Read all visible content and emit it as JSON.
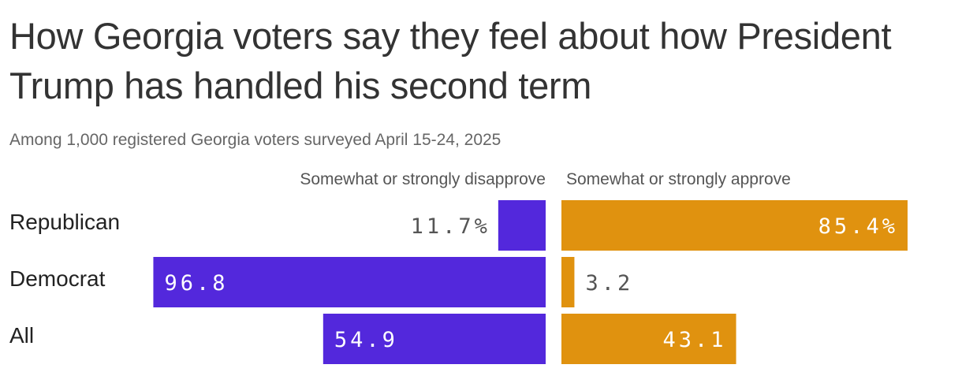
{
  "title": "How Georgia voters say they feel about how President Trump has handled his second term",
  "subtitle": "Among 1,000 registered Georgia voters surveyed April 15-24, 2025",
  "colors": {
    "disapprove": "#5328DC",
    "approve": "#E0920F",
    "label_inside": "#ffffff",
    "label_outside": "#555555"
  },
  "chart_data": {
    "type": "bar",
    "categories": [
      "Republican",
      "Democrat",
      "All"
    ],
    "series": [
      {
        "name": "Somewhat or strongly disapprove",
        "values": [
          11.7,
          96.8,
          54.9
        ],
        "labels": [
          "11.7%",
          "96.8",
          "54.9"
        ]
      },
      {
        "name": "Somewhat or strongly approve",
        "values": [
          85.4,
          3.2,
          43.1
        ],
        "labels": [
          "85.4%",
          "3.2",
          "43.1"
        ]
      }
    ],
    "xlim": [
      0,
      100
    ]
  }
}
